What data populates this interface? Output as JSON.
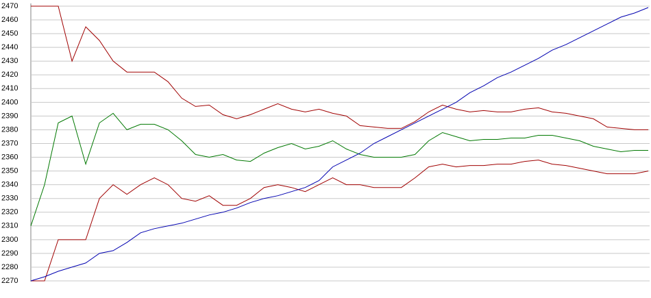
{
  "chart_data": {
    "type": "line",
    "ylim": [
      2270,
      2470
    ],
    "yticks": [
      2270,
      2280,
      2290,
      2300,
      2310,
      2320,
      2330,
      2340,
      2350,
      2360,
      2370,
      2380,
      2390,
      2400,
      2410,
      2420,
      2430,
      2440,
      2450,
      2460,
      2470
    ],
    "grid": true,
    "series": [
      {
        "color": "#a00000",
        "values": [
          2470,
          2470,
          2470,
          2430,
          2455,
          2445,
          2430,
          2422,
          2422,
          2422,
          2415,
          2403,
          2397,
          2398,
          2391,
          2388,
          2391,
          2395,
          2399,
          2395,
          2393,
          2395,
          2392,
          2390,
          2383,
          2382,
          2381,
          2381,
          2386,
          2393,
          2398,
          2395,
          2393,
          2394,
          2393,
          2393,
          2395,
          2396,
          2393,
          2392,
          2390,
          2388,
          2382,
          2381,
          2380,
          2380
        ]
      },
      {
        "color": "#007800",
        "values": [
          2310,
          2340,
          2385,
          2390,
          2355,
          2385,
          2392,
          2380,
          2384,
          2384,
          2380,
          2372,
          2362,
          2360,
          2362,
          2358,
          2357,
          2363,
          2367,
          2370,
          2366,
          2368,
          2372,
          2366,
          2362,
          2360,
          2360,
          2360,
          2362,
          2372,
          2378,
          2375,
          2372,
          2373,
          2373,
          2374,
          2374,
          2376,
          2376,
          2374,
          2372,
          2368,
          2366,
          2364,
          2365,
          2365
        ]
      },
      {
        "color": "#a00000",
        "values": [
          2270,
          2270,
          2300,
          2300,
          2300,
          2330,
          2340,
          2333,
          2340,
          2345,
          2340,
          2330,
          2328,
          2332,
          2325,
          2325,
          2330,
          2338,
          2340,
          2338,
          2335,
          2340,
          2345,
          2340,
          2340,
          2338,
          2338,
          2338,
          2345,
          2353,
          2355,
          2353,
          2354,
          2354,
          2355,
          2355,
          2357,
          2358,
          2355,
          2354,
          2352,
          2350,
          2348,
          2348,
          2348,
          2350
        ]
      },
      {
        "color": "#0000b0",
        "values": [
          2270,
          2273,
          2277,
          2280,
          2283,
          2290,
          2292,
          2298,
          2305,
          2308,
          2310,
          2312,
          2315,
          2318,
          2320,
          2323,
          2327,
          2330,
          2332,
          2335,
          2338,
          2343,
          2353,
          2358,
          2363,
          2370,
          2375,
          2380,
          2385,
          2390,
          2395,
          2400,
          2407,
          2412,
          2418,
          2422,
          2427,
          2432,
          2438,
          2442,
          2447,
          2452,
          2457,
          2462,
          2465,
          2469
        ]
      }
    ]
  }
}
